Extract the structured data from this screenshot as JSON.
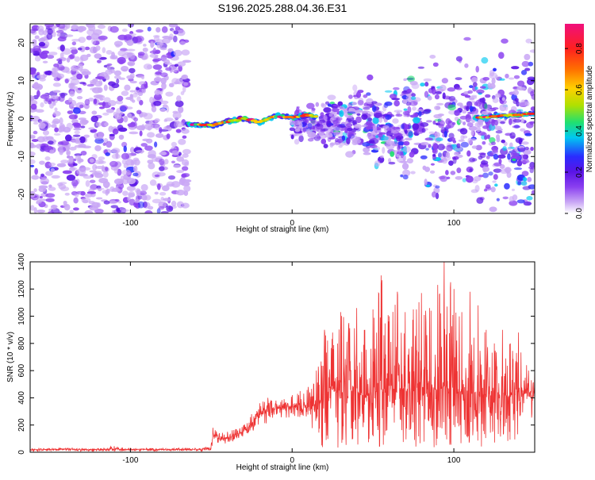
{
  "title": "S196.2025.288.04.36.E31",
  "colors": {
    "snr_line": "#ee3333",
    "colormap": [
      "#ffffff",
      "#c9a7f5",
      "#8a3ff0",
      "#5a14e6",
      "#2a2cff",
      "#00c8f0",
      "#20e070",
      "#b0e000",
      "#ffd000",
      "#ff7000",
      "#ff2020",
      "#f0107c"
    ]
  },
  "chart_data": [
    {
      "type": "heatmap",
      "title": "S196.2025.288.04.36.E31",
      "xlabel": "Height of straight line (km)",
      "ylabel": "Frequency (Hz)",
      "xlim": [
        -162,
        150
      ],
      "ylim": [
        -25,
        25
      ],
      "x_ticks": [
        -100,
        0,
        100
      ],
      "x_tick_labels": [
        "-100",
        "0",
        "100"
      ],
      "y_ticks": [
        -20,
        -10,
        0,
        10,
        20
      ],
      "y_tick_labels": [
        "-20",
        "-10",
        "0",
        "10",
        "20"
      ],
      "colorbar": {
        "label": "Normalized spectral amplitude",
        "range": [
          0,
          0.92
        ],
        "ticks": [
          0,
          0.2,
          0.4,
          0.6,
          0.8
        ],
        "tick_labels": [
          "0.0",
          "0.2",
          "0.4",
          "0.6",
          "0.8"
        ]
      },
      "regions": [
        {
          "x_range": [
            -162,
            -65
          ],
          "freq_range": [
            -25,
            25
          ],
          "amplitude": "0.1-0.3",
          "description": "broadband noise"
        },
        {
          "x_range": [
            -65,
            15
          ],
          "freq_range": [
            -3,
            2
          ],
          "amplitude": "0.4-0.9",
          "description": "narrow band near 0 Hz"
        },
        {
          "x_range": [
            15,
            150
          ],
          "freq_range": [
            -20,
            15
          ],
          "amplitude": "0.2-0.5",
          "description": "scattered energy widening with height"
        },
        {
          "x_range": [
            115,
            150
          ],
          "freq_range": [
            0,
            2
          ],
          "amplitude": "0.7-0.9",
          "description": "narrow band at ~1 Hz"
        }
      ]
    },
    {
      "type": "line",
      "xlabel": "Height of straight line (km)",
      "ylabel": "SNR (10 * v/v)",
      "xlim": [
        -162,
        150
      ],
      "ylim": [
        0,
        1400
      ],
      "x_ticks": [
        -100,
        0,
        100
      ],
      "x_tick_labels": [
        "-100",
        "0",
        "100"
      ],
      "y_ticks": [
        0,
        200,
        400,
        600,
        800,
        1000,
        1200,
        1400
      ],
      "y_tick_labels": [
        "0",
        "200",
        "400",
        "600",
        "800",
        "1000",
        "1200",
        "1400"
      ],
      "series": [
        {
          "name": "SNR",
          "x": [
            -162,
            -150,
            -140,
            -130,
            -120,
            -110,
            -100,
            -90,
            -80,
            -70,
            -60,
            -55,
            -50,
            -49,
            -45,
            -40,
            -35,
            -30,
            -25,
            -20,
            -15,
            -10,
            -5,
            0,
            5,
            10,
            15,
            20,
            25,
            30,
            35,
            40,
            45,
            50,
            55,
            60,
            65,
            70,
            75,
            80,
            85,
            90,
            94,
            100,
            105,
            110,
            115,
            120,
            125,
            130,
            135,
            140,
            145,
            150
          ],
          "mean": [
            20,
            20,
            22,
            20,
            20,
            22,
            20,
            22,
            20,
            20,
            20,
            22,
            30,
            140,
            100,
            110,
            120,
            150,
            210,
            280,
            330,
            320,
            330,
            330,
            340,
            350,
            350,
            420,
            450,
            430,
            460,
            450,
            420,
            440,
            460,
            450,
            470,
            460,
            430,
            480,
            460,
            470,
            480,
            450,
            440,
            450,
            430,
            400,
            410,
            430,
            420,
            430,
            430,
            440
          ],
          "peaks": [
            30,
            28,
            32,
            30,
            28,
            45,
            30,
            32,
            28,
            30,
            30,
            30,
            60,
            180,
            140,
            150,
            170,
            200,
            280,
            360,
            400,
            380,
            390,
            420,
            450,
            480,
            600,
            900,
            880,
            1030,
            950,
            1060,
            900,
            1050,
            1300,
            1000,
            1180,
            1030,
            1050,
            1170,
            1060,
            1230,
            1400,
            1200,
            1030,
            1180,
            1080,
            900,
            800,
            900,
            800,
            880,
            640,
            620
          ],
          "troughs": [
            5,
            8,
            6,
            8,
            7,
            6,
            8,
            7,
            8,
            6,
            8,
            8,
            12,
            80,
            60,
            65,
            80,
            110,
            150,
            180,
            220,
            260,
            250,
            250,
            260,
            260,
            60,
            30,
            30,
            25,
            25,
            30,
            20,
            25,
            30,
            20,
            25,
            20,
            30,
            25,
            20,
            25,
            20,
            25,
            30,
            25,
            30,
            40,
            60,
            70,
            80,
            90,
            220,
            250
          ]
        }
      ]
    }
  ]
}
